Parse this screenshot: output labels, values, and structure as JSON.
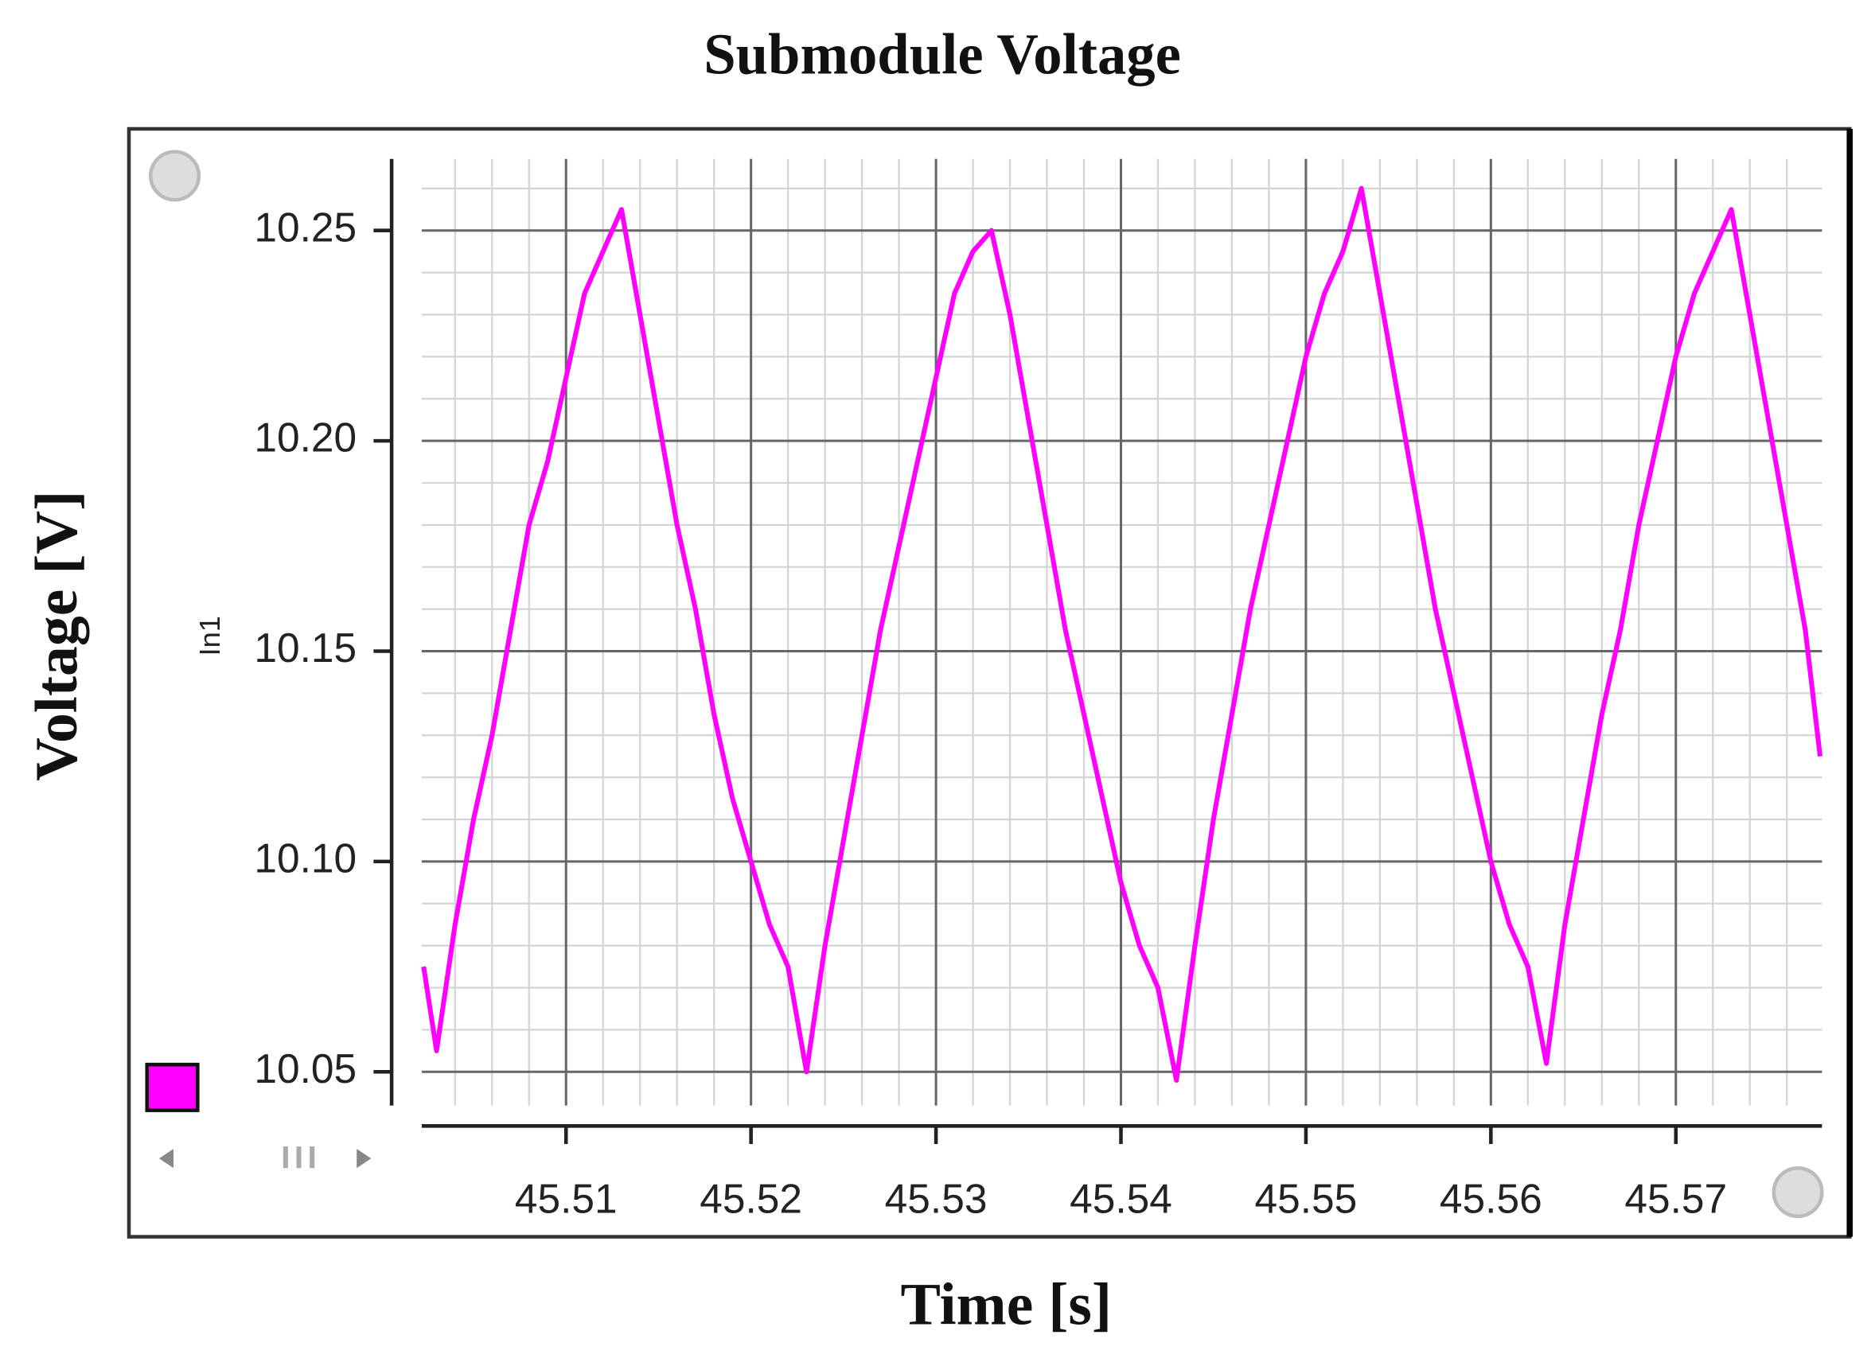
{
  "chart_data": {
    "type": "line",
    "title": "Submodule Voltage",
    "x_label": "Time [s]",
    "y_label": "Voltage [V]",
    "inner_y_label": "In1",
    "x": [
      45.5023,
      45.503,
      45.504,
      45.505,
      45.506,
      45.507,
      45.508,
      45.509,
      45.51,
      45.511,
      45.512,
      45.513,
      45.514,
      45.515,
      45.516,
      45.517,
      45.518,
      45.519,
      45.52,
      45.521,
      45.522,
      45.523,
      45.524,
      45.525,
      45.526,
      45.527,
      45.528,
      45.529,
      45.53,
      45.531,
      45.532,
      45.533,
      45.534,
      45.535,
      45.536,
      45.537,
      45.538,
      45.539,
      45.54,
      45.541,
      45.542,
      45.543,
      45.544,
      45.545,
      45.546,
      45.547,
      45.548,
      45.549,
      45.55,
      45.551,
      45.552,
      45.553,
      45.554,
      45.555,
      45.556,
      45.557,
      45.558,
      45.559,
      45.56,
      45.561,
      45.562,
      45.563,
      45.564,
      45.565,
      45.566,
      45.567,
      45.568,
      45.569,
      45.57,
      45.571,
      45.572,
      45.573,
      45.574,
      45.575,
      45.576,
      45.577,
      45.5778
    ],
    "series": [
      {
        "color": "#ff00ff",
        "values": [
          10.075,
          10.055,
          10.085,
          10.11,
          10.13,
          10.155,
          10.18,
          10.195,
          10.215,
          10.235,
          10.245,
          10.255,
          10.23,
          10.205,
          10.18,
          10.16,
          10.135,
          10.115,
          10.1,
          10.085,
          10.075,
          10.05,
          10.08,
          10.105,
          10.13,
          10.155,
          10.175,
          10.195,
          10.215,
          10.235,
          10.245,
          10.25,
          10.23,
          10.205,
          10.18,
          10.155,
          10.135,
          10.115,
          10.095,
          10.08,
          10.07,
          10.048,
          10.08,
          10.11,
          10.135,
          10.16,
          10.18,
          10.2,
          10.22,
          10.235,
          10.245,
          10.26,
          10.235,
          10.21,
          10.185,
          10.16,
          10.14,
          10.12,
          10.1,
          10.085,
          10.075,
          10.052,
          10.085,
          10.11,
          10.135,
          10.155,
          10.18,
          10.2,
          10.22,
          10.235,
          10.245,
          10.255,
          10.23,
          10.205,
          10.18,
          10.155,
          10.125
        ]
      }
    ],
    "xlim": [
      45.5022,
      45.5779
    ],
    "ylim": [
      10.042,
      10.267
    ],
    "xticks": [
      45.51,
      45.52,
      45.53,
      45.54,
      45.55,
      45.56,
      45.57
    ],
    "yticks": [
      10.05,
      {
        "value": 10.1,
        "label": "10.10"
      },
      10.15,
      {
        "value": 10.2,
        "label": "10.20"
      },
      10.25
    ],
    "grid": true
  }
}
